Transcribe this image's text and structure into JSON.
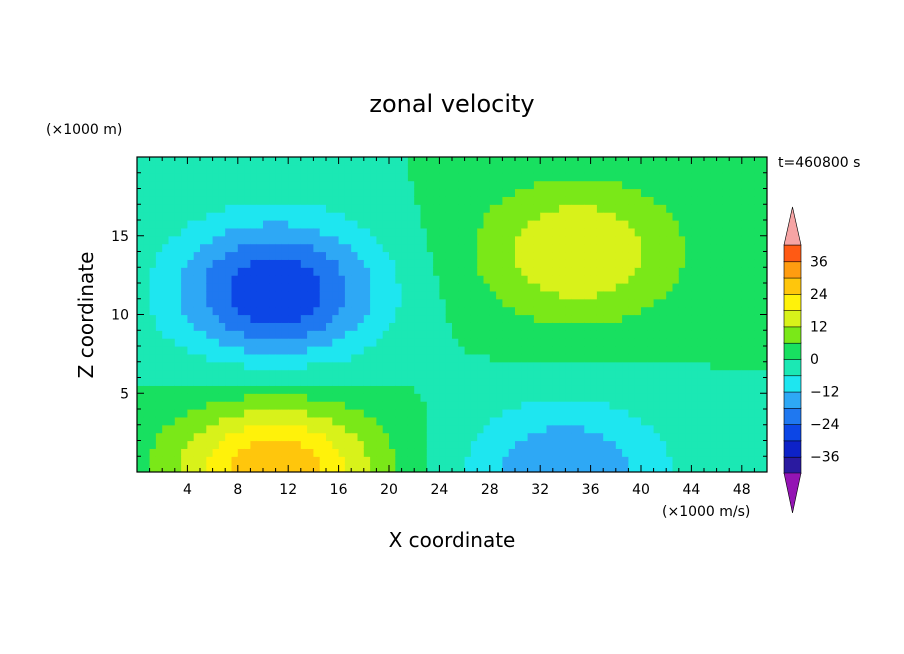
{
  "chart_data": {
    "type": "heatmap",
    "title": "zonal velocity",
    "xlabel": "X coordinate",
    "ylabel": "Z coordinate",
    "x_unit_note": "(×1000 m/s)",
    "y_unit_note": "(×1000 m)",
    "time_label": "t=460800 s",
    "xlim": [
      0,
      50
    ],
    "ylim": [
      0,
      20
    ],
    "x_ticks": [
      4,
      8,
      12,
      16,
      20,
      24,
      28,
      32,
      36,
      40,
      44,
      48
    ],
    "y_ticks": [
      5,
      10,
      15
    ],
    "x_tick_labels": [
      "4",
      "8",
      "12",
      "16",
      "20",
      "24",
      "28",
      "32",
      "36",
      "40",
      "44",
      "48"
    ],
    "y_tick_labels": [
      "5",
      "10",
      "15"
    ],
    "colorbar": {
      "levels": [
        -42,
        -36,
        -30,
        -24,
        -18,
        -12,
        -6,
        0,
        6,
        12,
        18,
        24,
        30,
        36,
        42
      ],
      "colors": [
        "#4b0f8c",
        "#2a1aa0",
        "#0d22c8",
        "#0c46e6",
        "#1f78f0",
        "#2ea8f5",
        "#1ee6f0",
        "#1be8b4",
        "#18e060",
        "#7ae818",
        "#d8f21a",
        "#fff20a",
        "#ffc60c",
        "#ff9c10",
        "#ff5a14",
        "#f01c1c"
      ],
      "under_color": "#9414b4",
      "over_color": "#f6a4a4",
      "tick_values": [
        36,
        24,
        12,
        0,
        -12,
        -24,
        -36
      ],
      "tick_labels": [
        "36",
        "24",
        "12",
        "0",
        "−12",
        "−24",
        "−36"
      ]
    },
    "features": [
      {
        "kind": "min",
        "x": 11,
        "z": 11.5,
        "value": -30
      },
      {
        "kind": "max",
        "x": 35,
        "z": 14,
        "value": 18
      },
      {
        "kind": "max",
        "x": 11,
        "z": 0,
        "value": 30
      },
      {
        "kind": "min",
        "x": 34,
        "z": 0,
        "value": -18
      }
    ]
  }
}
